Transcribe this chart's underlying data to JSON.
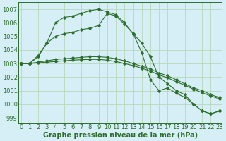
{
  "background_color": "#d6eef5",
  "plot_bg_color": "#d6eef5",
  "grid_color": "#b0d4b0",
  "line_color": "#2d6e2d",
  "xlabel": "Graphe pression niveau de la mer (hPa)",
  "xlabel_fontsize": 7,
  "tick_fontsize": 6,
  "ylabel_ticks": [
    999,
    1000,
    1001,
    1002,
    1003,
    1004,
    1005,
    1006,
    1007
  ],
  "xlim": [
    -0.3,
    23.3
  ],
  "ylim": [
    998.6,
    1007.5
  ],
  "x": [
    0,
    1,
    2,
    3,
    4,
    5,
    6,
    7,
    8,
    9,
    10,
    11,
    12,
    13,
    14,
    15,
    16,
    17,
    18,
    19,
    20,
    21,
    22,
    23
  ],
  "line1": [
    1003.0,
    1003.0,
    1003.5,
    1004.5,
    1006.0,
    1006.4,
    1006.5,
    1006.7,
    1006.9,
    1007.0,
    1006.8,
    1006.6,
    1006.0,
    1005.2,
    1004.5,
    1003.5,
    1002.0,
    1001.5,
    1001.0,
    1000.7,
    1000.0,
    999.5,
    999.3,
    999.5
  ],
  "line2": [
    1003.0,
    1003.0,
    1003.6,
    1004.5,
    1005.0,
    1005.2,
    1005.3,
    1005.5,
    1005.6,
    1005.8,
    1006.7,
    1006.5,
    1005.9,
    1005.2,
    1003.8,
    1001.8,
    1001.0,
    1001.2,
    1000.8,
    1000.5,
    1000.0,
    999.5,
    999.3,
    999.5
  ],
  "line3": [
    1003.0,
    1003.0,
    1003.1,
    1003.2,
    1003.3,
    1003.35,
    1003.4,
    1003.45,
    1003.5,
    1003.5,
    1003.45,
    1003.35,
    1003.2,
    1003.0,
    1002.8,
    1002.6,
    1002.3,
    1002.1,
    1001.8,
    1001.5,
    1001.2,
    1001.0,
    1000.7,
    1000.5
  ],
  "line4": [
    1003.0,
    1003.0,
    1003.05,
    1003.1,
    1003.15,
    1003.2,
    1003.25,
    1003.28,
    1003.3,
    1003.3,
    1003.25,
    1003.15,
    1003.0,
    1002.85,
    1002.65,
    1002.45,
    1002.15,
    1001.95,
    1001.65,
    1001.4,
    1001.1,
    1000.85,
    1000.6,
    1000.4
  ]
}
